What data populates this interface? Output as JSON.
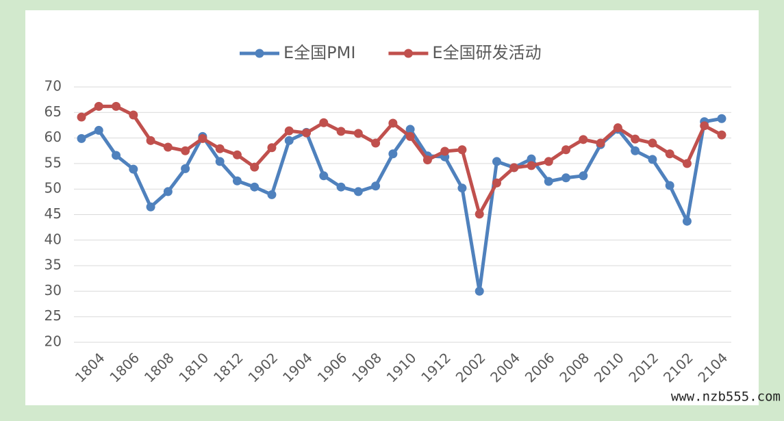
{
  "chart_data": {
    "type": "line",
    "categories": [
      null,
      "1804",
      null,
      "1806",
      null,
      "1808",
      null,
      "1810",
      null,
      "1812",
      null,
      "1902",
      null,
      "1904",
      null,
      "1906",
      null,
      "1908",
      null,
      "1910",
      null,
      "1912",
      null,
      "2002",
      null,
      "2004",
      null,
      "2006",
      null,
      "2008",
      null,
      "2010",
      null,
      "2012",
      null,
      "2102",
      null,
      "2104"
    ],
    "series": [
      {
        "name": "E全国PMI",
        "color": "#4f81bd",
        "values": [
          59.9,
          61.5,
          56.6,
          53.9,
          46.5,
          49.5,
          54.0,
          60.3,
          55.4,
          51.6,
          50.4,
          48.9,
          59.5,
          61.1,
          52.6,
          50.4,
          49.5,
          50.6,
          56.9,
          61.7,
          56.5,
          56.3,
          50.2,
          30.0,
          55.4,
          54.2,
          55.9,
          51.5,
          52.2,
          52.6,
          58.7,
          61.7,
          57.5,
          55.8,
          50.7,
          43.7,
          63.2,
          63.8
        ]
      },
      {
        "name": "E全国研发活动",
        "color": "#c0504d",
        "values": [
          64.1,
          66.2,
          66.2,
          64.5,
          59.5,
          58.2,
          57.5,
          59.9,
          57.9,
          56.7,
          54.3,
          58.1,
          61.4,
          61.0,
          63.0,
          61.3,
          60.9,
          59.0,
          62.9,
          60.3,
          55.7,
          57.4,
          57.7,
          45.1,
          51.2,
          54.2,
          54.6,
          55.4,
          57.7,
          59.7,
          59.0,
          62.0,
          59.8,
          59.0,
          56.9,
          55.0,
          62.4,
          60.6
        ]
      }
    ],
    "ylim": [
      20,
      70
    ],
    "yticks": [
      20,
      25,
      30,
      35,
      40,
      45,
      50,
      55,
      60,
      65,
      70
    ],
    "grid": true,
    "legend": "top",
    "watermark": "www.nzb555.com"
  }
}
